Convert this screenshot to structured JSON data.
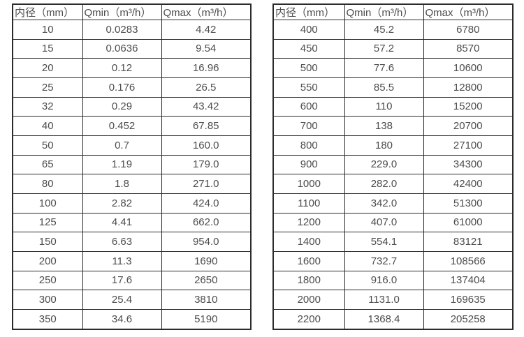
{
  "colors": {
    "background": "#ffffff",
    "border": "#2b2b2b",
    "text": "#4d4d4d"
  },
  "tables": [
    {
      "name": "flow-table-small-diameters",
      "headers": [
        "内径（mm）",
        "Qmin（m³/h）",
        "Qmax（m³/h）"
      ],
      "rows": [
        [
          "10",
          "0.0283",
          "4.42"
        ],
        [
          "15",
          "0.0636",
          "9.54"
        ],
        [
          "20",
          "0.12",
          "16.96"
        ],
        [
          "25",
          "0.176",
          "26.5"
        ],
        [
          "32",
          "0.29",
          "43.42"
        ],
        [
          "40",
          "0.452",
          "67.85"
        ],
        [
          "50",
          "0.7",
          "160.0"
        ],
        [
          "65",
          "1.19",
          "179.0"
        ],
        [
          "80",
          "1.8",
          "271.0"
        ],
        [
          "100",
          "2.82",
          "424.0"
        ],
        [
          "125",
          "4.41",
          "662.0"
        ],
        [
          "150",
          "6.63",
          "954.0"
        ],
        [
          "200",
          "11.3",
          "1690"
        ],
        [
          "250",
          "17.6",
          "2650"
        ],
        [
          "300",
          "25.4",
          "3810"
        ],
        [
          "350",
          "34.6",
          "5190"
        ]
      ]
    },
    {
      "name": "flow-table-large-diameters",
      "headers": [
        "内径（mm）",
        "Qmin（m³/h）",
        "Qmax（m³/h）"
      ],
      "rows": [
        [
          "400",
          "45.2",
          "6780"
        ],
        [
          "450",
          "57.2",
          "8570"
        ],
        [
          "500",
          "77.6",
          "10600"
        ],
        [
          "550",
          "85.5",
          "12800"
        ],
        [
          "600",
          "110",
          "15200"
        ],
        [
          "700",
          "138",
          "20700"
        ],
        [
          "800",
          "180",
          "27100"
        ],
        [
          "900",
          "229.0",
          "34300"
        ],
        [
          "1000",
          "282.0",
          "42400"
        ],
        [
          "1100",
          "342.0",
          "51300"
        ],
        [
          "1200",
          "407.0",
          "61000"
        ],
        [
          "1400",
          "554.1",
          "83121"
        ],
        [
          "1600",
          "732.7",
          "108566"
        ],
        [
          "1800",
          "916.0",
          "137404"
        ],
        [
          "2000",
          "1131.0",
          "169635"
        ],
        [
          "2200",
          "1368.4",
          "205258"
        ]
      ]
    }
  ]
}
